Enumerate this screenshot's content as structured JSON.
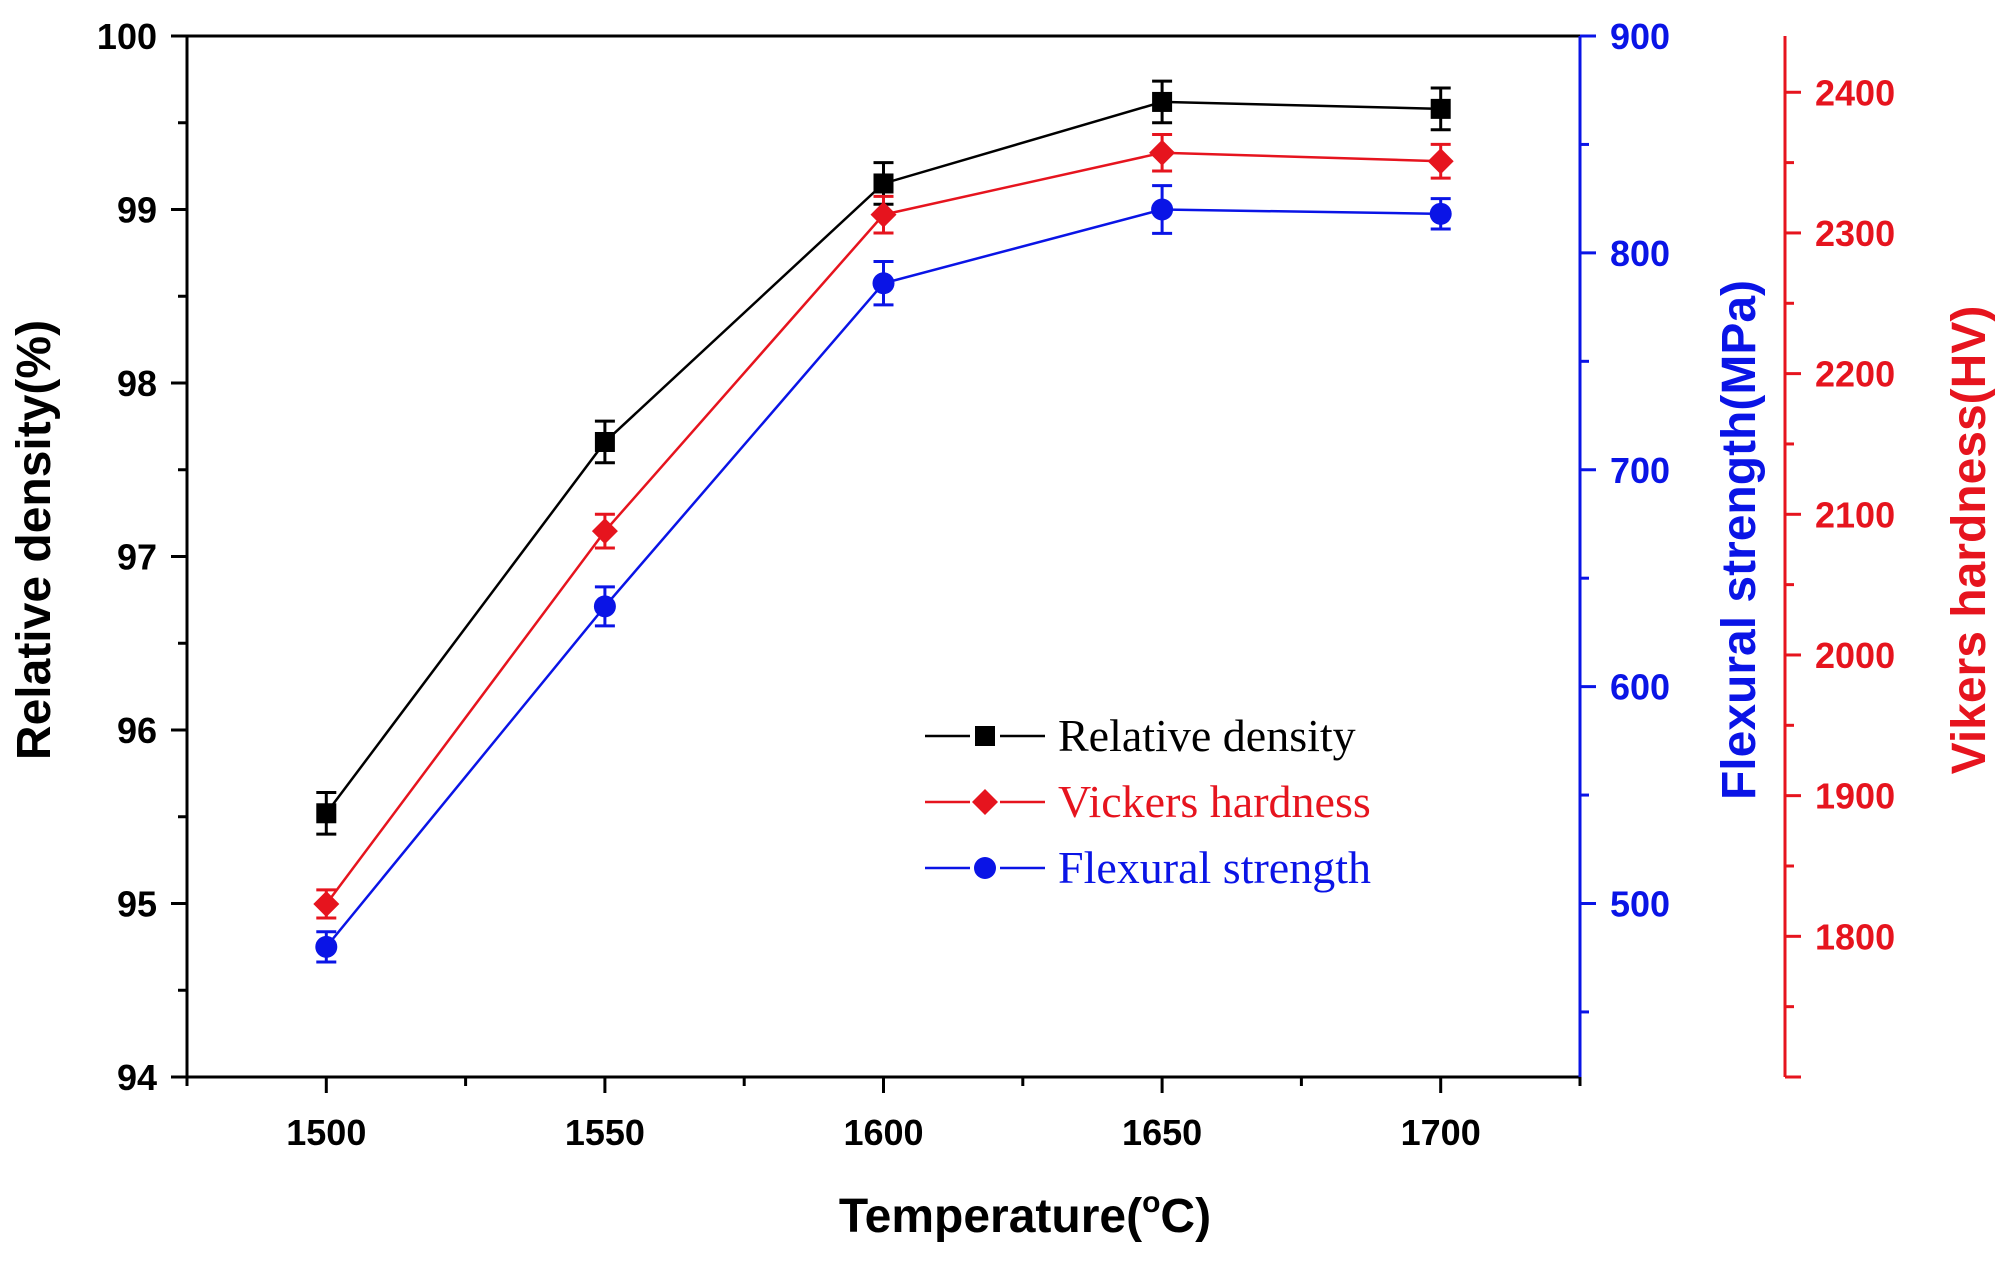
{
  "chart_data": {
    "type": "line",
    "title": "",
    "xlabel": "Temperature(",
    "xlabel_superscript": "o",
    "xlabel_suffix": "C)",
    "x": [
      1500,
      1550,
      1600,
      1650,
      1700
    ],
    "x_ticks": [
      1500,
      1550,
      1600,
      1650,
      1700
    ],
    "xlim": [
      1475,
      1725
    ],
    "axes": {
      "left": {
        "label": "Relative density(%)",
        "color": "#000000",
        "ylim": [
          94,
          100
        ],
        "ticks": [
          94,
          95,
          96,
          97,
          98,
          99,
          100
        ]
      },
      "right1": {
        "label": "Flexural strength(MPa)",
        "color": "#0a14e6",
        "ylim": [
          420,
          900
        ],
        "ticks": [
          500,
          600,
          700,
          800,
          900
        ]
      },
      "right2": {
        "label": "Vikers hardness(HV)",
        "color": "#e6141e",
        "ylim": [
          1700,
          2440
        ],
        "ticks": [
          1800,
          1900,
          2000,
          2100,
          2200,
          2300,
          2400
        ]
      }
    },
    "series": [
      {
        "name": "Relative density",
        "axis": "left",
        "color": "#000000",
        "marker": "square",
        "values": [
          95.52,
          97.66,
          99.15,
          99.62,
          99.58
        ],
        "errors": [
          0.12,
          0.12,
          0.12,
          0.12,
          0.12
        ]
      },
      {
        "name": "Vickers hardness",
        "axis": "right2",
        "color": "#e6141e",
        "marker": "diamond",
        "values": [
          1823,
          2088,
          2313,
          2357,
          2351
        ],
        "errors": [
          10,
          12,
          13,
          13,
          12
        ]
      },
      {
        "name": "Flexural strength",
        "axis": "right1",
        "color": "#0a14e6",
        "marker": "circle",
        "values": [
          480,
          637,
          786,
          820,
          818
        ],
        "errors": [
          7,
          9,
          10,
          11,
          7
        ]
      }
    ],
    "legend": {
      "placement": "center-right",
      "entries": [
        "Relative density",
        "Vickers hardness",
        "Flexural strength"
      ]
    }
  }
}
